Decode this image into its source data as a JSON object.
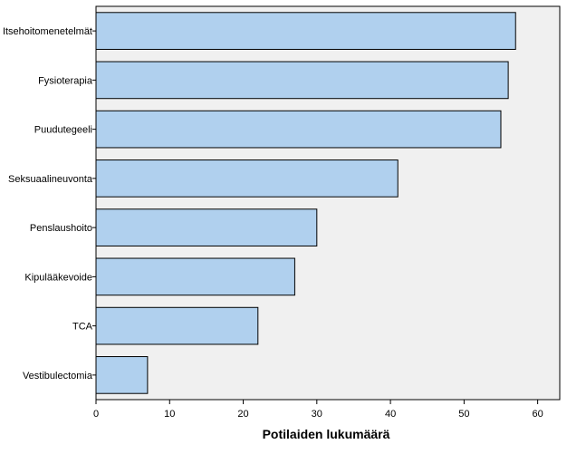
{
  "chart_data": {
    "type": "bar",
    "orientation": "horizontal",
    "title": "",
    "xlabel": "Potilaiden lukumäärä",
    "ylabel": "",
    "categories": [
      "Itsehoitomenetelmät",
      "Fysioterapia",
      "Puudutegeeli",
      "Seksuaalineuvonta",
      "Penslaushoito",
      "Kipulääkevoide",
      "TCA",
      "Vestibulectomia"
    ],
    "values": [
      57,
      56,
      55,
      41,
      30,
      27,
      22,
      7
    ],
    "xlim": [
      0,
      63
    ],
    "xticks": [
      0,
      10,
      20,
      30,
      40,
      50,
      60
    ],
    "grid": false,
    "legend": "none"
  },
  "colors": {
    "bar_fill": "#b0d0ee",
    "plot_background": "#f0f0f0",
    "bar_stroke": "#000000"
  }
}
